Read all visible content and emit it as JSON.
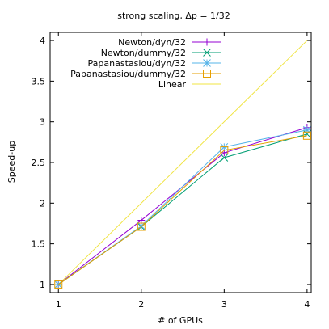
{
  "chart_data": {
    "type": "line",
    "title": "strong scaling, Δp = 1/32",
    "xlabel": "# of GPUs",
    "ylabel": "Speed-up",
    "xlim": [
      0.9,
      4.05
    ],
    "ylim": [
      0.9,
      4.1
    ],
    "x_ticks": [
      1,
      2,
      3,
      4
    ],
    "y_ticks": [
      1,
      1.5,
      2,
      2.5,
      3,
      3.5,
      4
    ],
    "x_tick_labels": [
      "1",
      "2",
      "3",
      "4"
    ],
    "y_tick_labels": [
      "1",
      "1.5",
      "2",
      "2.5",
      "3",
      "3.5",
      "4"
    ],
    "legend_position": "top-left",
    "series": [
      {
        "name": "Newton/dyn/32",
        "color": "#9400d3",
        "marker": "plus",
        "x": [
          1,
          2,
          3,
          4
        ],
        "y": [
          1.0,
          1.79,
          2.62,
          2.93
        ]
      },
      {
        "name": "Newton/dummy/32",
        "color": "#009e73",
        "marker": "cross",
        "x": [
          1,
          2,
          3,
          4
        ],
        "y": [
          1.0,
          1.71,
          2.56,
          2.85
        ]
      },
      {
        "name": "Papanastasiou/dyn/32",
        "color": "#56b4e9",
        "marker": "star",
        "x": [
          1,
          2,
          3,
          4
        ],
        "y": [
          1.0,
          1.72,
          2.69,
          2.9
        ]
      },
      {
        "name": "Papanastasiou/dummy/32",
        "color": "#e69f00",
        "marker": "square",
        "x": [
          1,
          2,
          3,
          4
        ],
        "y": [
          1.0,
          1.71,
          2.65,
          2.83
        ]
      },
      {
        "name": "Linear",
        "color": "#f0e442",
        "marker": "none",
        "x": [
          1,
          4
        ],
        "y": [
          1,
          4
        ]
      }
    ]
  }
}
